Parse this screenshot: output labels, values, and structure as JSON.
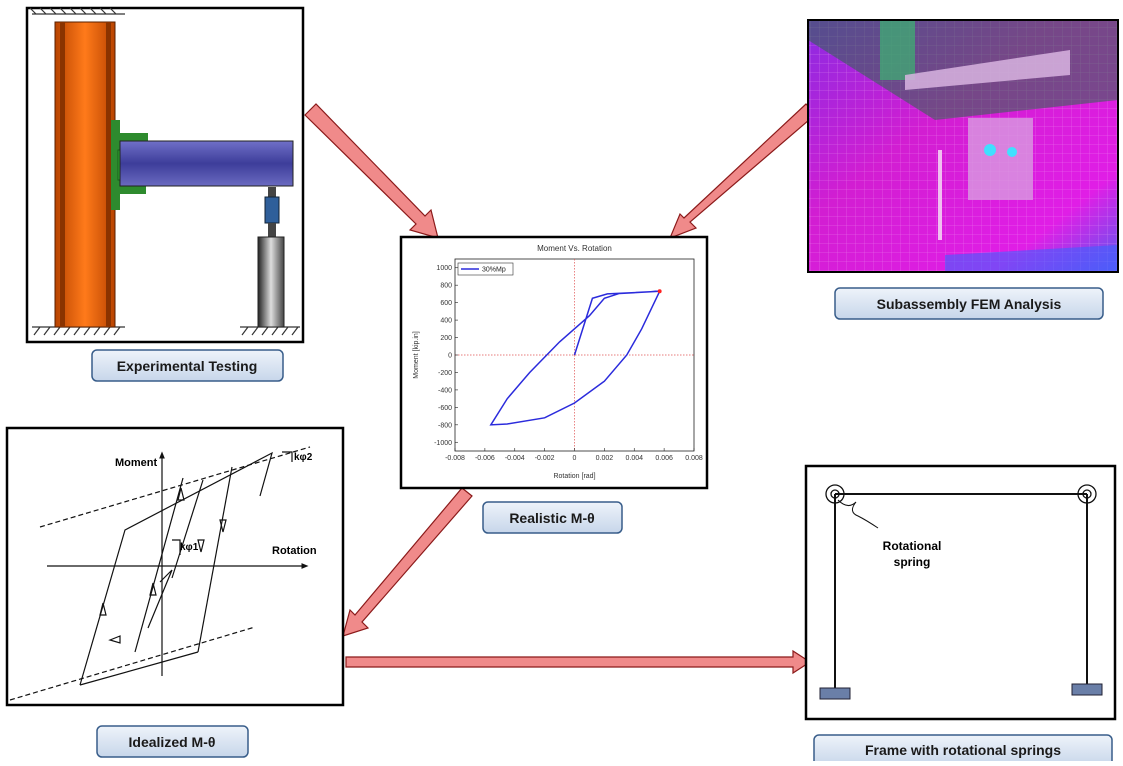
{
  "panels": {
    "experimental": {
      "label": "Experimental Testing"
    },
    "fem": {
      "label": "Subassembly FEM Analysis"
    },
    "realistic": {
      "label": "Realistic M-θ",
      "chart": {
        "type": "line",
        "title": "Moment Vs. Rotation",
        "x_label": "Rotation [rad]",
        "y_label": "Moment [kip.in]",
        "xlim": [
          -0.008,
          0.008
        ],
        "ylim": [
          -1100,
          1100
        ],
        "xticks": [
          -0.008,
          -0.006,
          -0.004,
          -0.002,
          0,
          0.002,
          0.004,
          0.006,
          0.008
        ],
        "yticks": [
          -1000,
          -800,
          -600,
          -400,
          -200,
          0,
          200,
          400,
          600,
          800,
          1000
        ],
        "series": [
          {
            "name": "30%Mp",
            "color": "#2b2bdc",
            "x": [
              0,
              0.0012,
              0.0022,
              0.004,
              0.0057,
              0.0045,
              0.0035,
              0.002,
              0,
              -0.002,
              -0.0045,
              -0.0056,
              -0.0045,
              -0.003,
              -0.001,
              0.001,
              0.002,
              0.003,
              0.0057
            ],
            "values": [
              0,
              650,
              700,
              715,
              730,
              300,
              0,
              -300,
              -550,
              -720,
              -790,
              -800,
              -500,
              -200,
              150,
              450,
              650,
              705,
              730
            ]
          }
        ],
        "end_marker_color": "#ff2020"
      }
    },
    "idealized": {
      "label": "Idealized M-θ",
      "y_axis": "Moment",
      "x_axis": "Rotation",
      "k1": "kφ1",
      "k2": "kφ2"
    },
    "frame": {
      "label": "Frame with rotational springs",
      "spring_label": [
        "Rotational",
        "spring"
      ]
    }
  }
}
